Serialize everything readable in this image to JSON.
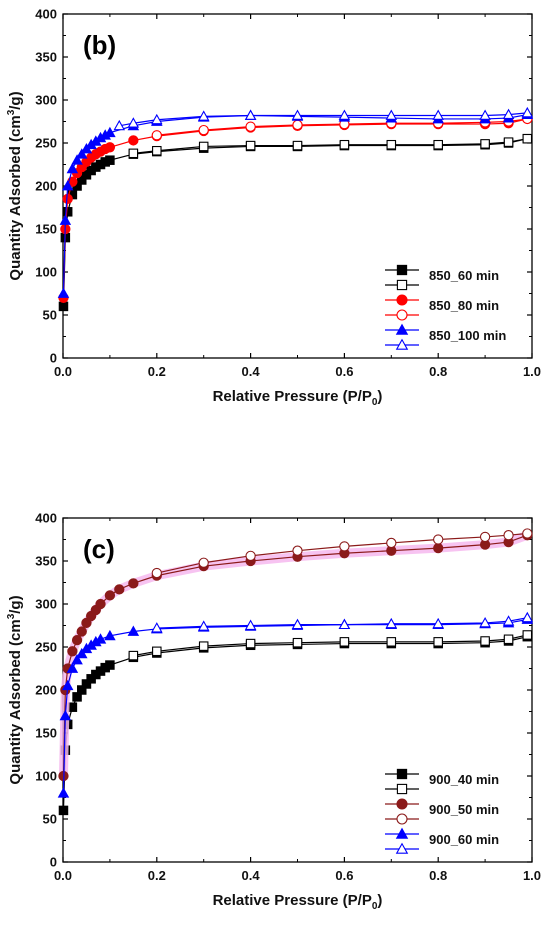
{
  "chart_data": [
    {
      "type": "scatter",
      "title": "",
      "panel_label": "(b)",
      "xlabel": "Relative Pressure (P/P",
      "xlabel_subscript": "0",
      "xlabel_suffix": ")",
      "ylabel": "Quantity Adsorbed (cm",
      "ylabel_superscript": "3",
      "ylabel_suffix": "/g)",
      "xlim": [
        0,
        1.0
      ],
      "ylim": [
        0,
        400
      ],
      "xticks": [
        0.0,
        0.2,
        0.4,
        0.6,
        0.8,
        1.0
      ],
      "xtick_labels": [
        "0.0",
        "0.2",
        "0.4",
        "0.6",
        "0.8",
        "1.0"
      ],
      "yticks": [
        0,
        50,
        100,
        150,
        200,
        250,
        300,
        350,
        400
      ],
      "ytick_labels": [
        "0",
        "50",
        "100",
        "150",
        "200",
        "250",
        "300",
        "350",
        "400"
      ],
      "grid": false,
      "legend_position": "bottom-right",
      "series": [
        {
          "name": "850_60 min",
          "color": "#000000",
          "marker": "square",
          "filled": true,
          "x": [
            0.001,
            0.005,
            0.01,
            0.02,
            0.03,
            0.04,
            0.05,
            0.06,
            0.07,
            0.08,
            0.09,
            0.1,
            0.15,
            0.2,
            0.3,
            0.4,
            0.5,
            0.6,
            0.7,
            0.8,
            0.9,
            0.95,
            0.99
          ],
          "y": [
            60,
            140,
            170,
            190,
            200,
            207,
            213,
            218,
            222,
            225,
            228,
            230,
            237,
            240,
            244,
            246,
            246,
            247,
            247,
            247,
            248,
            250,
            255
          ]
        },
        {
          "name": "",
          "color": "#000000",
          "marker": "square",
          "filled": false,
          "x": [
            0.99,
            0.95,
            0.9,
            0.8,
            0.7,
            0.6,
            0.5,
            0.4,
            0.3,
            0.2,
            0.15
          ],
          "y": [
            255,
            251,
            249,
            248,
            248,
            248,
            247,
            247,
            246,
            241,
            238
          ]
        },
        {
          "name": "850_80 min",
          "color": "#ff0000",
          "marker": "circle",
          "filled": true,
          "x": [
            0.001,
            0.005,
            0.01,
            0.02,
            0.03,
            0.04,
            0.05,
            0.06,
            0.07,
            0.08,
            0.09,
            0.1,
            0.15,
            0.2,
            0.3,
            0.4,
            0.5,
            0.6,
            0.7,
            0.8,
            0.9,
            0.95,
            0.99
          ],
          "y": [
            70,
            150,
            185,
            205,
            215,
            222,
            228,
            233,
            237,
            240,
            243,
            245,
            253,
            258,
            264,
            268,
            270,
            271,
            272,
            272,
            272,
            273,
            278
          ]
        },
        {
          "name": "",
          "color": "#ff0000",
          "marker": "circle",
          "filled": false,
          "x": [
            0.99,
            0.95,
            0.9,
            0.8,
            0.7,
            0.6,
            0.5,
            0.4,
            0.3,
            0.2
          ],
          "y": [
            278,
            275,
            274,
            273,
            273,
            272,
            271,
            269,
            265,
            259
          ]
        },
        {
          "name": "850_100 min",
          "color": "#0000ff",
          "marker": "triangle",
          "filled": true,
          "x": [
            0.001,
            0.005,
            0.01,
            0.02,
            0.03,
            0.04,
            0.05,
            0.06,
            0.07,
            0.08,
            0.09,
            0.1,
            0.15,
            0.2,
            0.3,
            0.4,
            0.5,
            0.6,
            0.7,
            0.8,
            0.9,
            0.95,
            0.99
          ],
          "y": [
            75,
            160,
            200,
            220,
            230,
            237,
            243,
            248,
            252,
            256,
            259,
            262,
            270,
            275,
            280,
            282,
            281,
            280,
            279,
            278,
            278,
            279,
            283
          ]
        },
        {
          "name": "",
          "color": "#0000ff",
          "marker": "triangle",
          "filled": false,
          "x": [
            0.99,
            0.95,
            0.9,
            0.8,
            0.7,
            0.6,
            0.5,
            0.4,
            0.3,
            0.2,
            0.15,
            0.12
          ],
          "y": [
            285,
            283,
            282,
            282,
            282,
            282,
            282,
            282,
            281,
            277,
            273,
            270
          ]
        }
      ]
    },
    {
      "type": "scatter",
      "title": "",
      "panel_label": "(c)",
      "xlabel": "Relative Pressure (P/P",
      "xlabel_subscript": "0",
      "xlabel_suffix": ")",
      "ylabel": "Quantity Adsorbed (cm",
      "ylabel_superscript": "3",
      "ylabel_suffix": "/g)",
      "xlim": [
        0,
        1.0
      ],
      "ylim": [
        0,
        400
      ],
      "xticks": [
        0.0,
        0.2,
        0.4,
        0.6,
        0.8,
        1.0
      ],
      "xtick_labels": [
        "0.0",
        "0.2",
        "0.4",
        "0.6",
        "0.8",
        "1.0"
      ],
      "yticks": [
        0,
        50,
        100,
        150,
        200,
        250,
        300,
        350,
        400
      ],
      "ytick_labels": [
        "0",
        "50",
        "100",
        "150",
        "200",
        "250",
        "300",
        "350",
        "400"
      ],
      "grid": false,
      "legend_position": "bottom-right",
      "series": [
        {
          "name": "900_40 min",
          "color": "#000000",
          "marker": "square",
          "filled": true,
          "x": [
            0.001,
            0.005,
            0.01,
            0.02,
            0.03,
            0.04,
            0.05,
            0.06,
            0.07,
            0.08,
            0.09,
            0.1,
            0.15,
            0.2,
            0.3,
            0.4,
            0.5,
            0.6,
            0.7,
            0.8,
            0.9,
            0.95,
            0.99
          ],
          "y": [
            60,
            130,
            160,
            180,
            192,
            200,
            207,
            213,
            218,
            222,
            226,
            229,
            238,
            243,
            249,
            252,
            253,
            254,
            254,
            254,
            255,
            257,
            262
          ]
        },
        {
          "name": "",
          "color": "#000000",
          "marker": "square",
          "filled": false,
          "x": [
            0.99,
            0.95,
            0.9,
            0.8,
            0.7,
            0.6,
            0.5,
            0.4,
            0.3,
            0.2,
            0.15
          ],
          "y": [
            264,
            259,
            257,
            256,
            256,
            256,
            255,
            254,
            251,
            245,
            240
          ]
        },
        {
          "name": "900_50 min",
          "color": "#8b1a1a",
          "marker": "circle",
          "filled": true,
          "halo": "#f6b8ee",
          "x": [
            0.001,
            0.005,
            0.01,
            0.02,
            0.03,
            0.04,
            0.05,
            0.06,
            0.07,
            0.08,
            0.1,
            0.12,
            0.15,
            0.2,
            0.3,
            0.4,
            0.5,
            0.6,
            0.7,
            0.8,
            0.9,
            0.95,
            0.99
          ],
          "y": [
            100,
            200,
            225,
            245,
            258,
            268,
            278,
            286,
            293,
            300,
            310,
            317,
            324,
            333,
            344,
            350,
            355,
            359,
            362,
            365,
            369,
            372,
            380
          ]
        },
        {
          "name": "",
          "color": "#8b1a1a",
          "marker": "circle",
          "filled": false,
          "x": [
            0.99,
            0.95,
            0.9,
            0.8,
            0.7,
            0.6,
            0.5,
            0.4,
            0.3,
            0.2
          ],
          "y": [
            382,
            380,
            378,
            375,
            371,
            367,
            362,
            356,
            348,
            336
          ]
        },
        {
          "name": "900_60 min",
          "color": "#0000ff",
          "marker": "triangle",
          "filled": true,
          "x": [
            0.001,
            0.005,
            0.01,
            0.02,
            0.03,
            0.04,
            0.05,
            0.06,
            0.07,
            0.08,
            0.1,
            0.15,
            0.2,
            0.3,
            0.4,
            0.5,
            0.6,
            0.7,
            0.8,
            0.9,
            0.95,
            0.99
          ],
          "y": [
            80,
            170,
            205,
            225,
            235,
            242,
            248,
            252,
            256,
            259,
            263,
            268,
            271,
            273,
            274,
            275,
            276,
            276,
            276,
            277,
            278,
            282
          ]
        },
        {
          "name": "",
          "color": "#0000ff",
          "marker": "triangle",
          "filled": false,
          "x": [
            0.99,
            0.95,
            0.9,
            0.8,
            0.7,
            0.6,
            0.5,
            0.4,
            0.3,
            0.2
          ],
          "y": [
            284,
            280,
            278,
            277,
            277,
            276,
            276,
            275,
            274,
            272
          ]
        }
      ]
    }
  ]
}
